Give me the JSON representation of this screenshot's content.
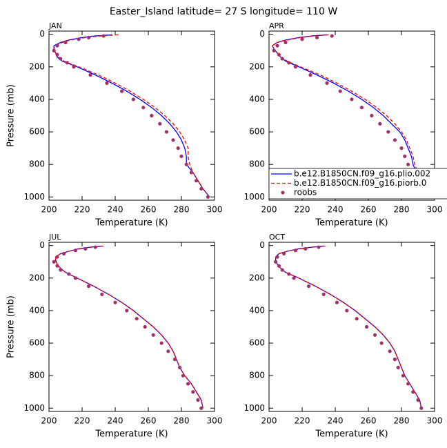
{
  "title": "Easter_Island  latitude= 27 S longitude= 110 W",
  "chart_data": [
    {
      "type": "line",
      "title": "JAN",
      "xlabel": "Temperature (K)",
      "ylabel": "Pressure (mb)",
      "xlim": [
        200,
        300
      ],
      "xticks": [
        200,
        220,
        240,
        260,
        280,
        300
      ],
      "ylim": [
        -20,
        1020
      ],
      "yticks": [
        0,
        200,
        400,
        600,
        800,
        1000
      ],
      "y_inverted": true,
      "series": [
        {
          "color": "#0000ff",
          "style": "solid",
          "x": [
            238,
            228,
            220,
            212,
            207,
            203,
            203,
            204,
            205,
            208,
            217,
            228,
            238,
            247,
            255,
            262,
            268,
            273,
            277,
            280,
            282,
            283,
            283,
            287,
            290,
            293,
            297
          ],
          "values": [
            3,
            10,
            20,
            35,
            50,
            70,
            90,
            115,
            140,
            165,
            200,
            250,
            300,
            350,
            400,
            450,
            500,
            550,
            600,
            650,
            700,
            750,
            800,
            850,
            900,
            950,
            1000
          ]
        },
        {
          "color": "#ff0000",
          "style": "dashed",
          "x": [
            242,
            231,
            222,
            213,
            208,
            204,
            203,
            204,
            206,
            209,
            218,
            230,
            240,
            249,
            257,
            264,
            270,
            275,
            279,
            282,
            284,
            284,
            285,
            287,
            290,
            293,
            297
          ],
          "values": [
            3,
            10,
            20,
            35,
            50,
            70,
            90,
            115,
            140,
            165,
            200,
            250,
            300,
            350,
            400,
            450,
            500,
            550,
            600,
            650,
            700,
            750,
            800,
            850,
            900,
            950,
            1000
          ]
        },
        {
          "color": "#a3306a",
          "style": "markers",
          "x": [
            233,
            224,
            218,
            210,
            205,
            203,
            205,
            207,
            211,
            215,
            225,
            235,
            244,
            251,
            257,
            262,
            267,
            271,
            275,
            278,
            280,
            283,
            286,
            289,
            292,
            296
          ],
          "values": [
            10,
            20,
            30,
            50,
            70,
            100,
            125,
            150,
            175,
            200,
            250,
            300,
            350,
            400,
            450,
            500,
            550,
            600,
            650,
            700,
            750,
            800,
            850,
            900,
            950,
            1000
          ]
        }
      ]
    },
    {
      "type": "line",
      "title": "APR",
      "xlabel": "Temperature (K)",
      "xlim": [
        200,
        300
      ],
      "xticks": [
        200,
        220,
        240,
        260,
        280,
        300
      ],
      "ylim": [
        -20,
        1020
      ],
      "yticks": [
        0,
        200,
        400,
        600,
        800,
        1000
      ],
      "y_inverted": true,
      "legend": "lower right",
      "series": [
        {
          "name": "b.e12.B1850CN.f09_g16.plio.002",
          "color": "#0000ff",
          "style": "solid",
          "x": [
            235,
            226,
            218,
            210,
            205,
            202,
            203,
            205,
            207,
            210,
            218,
            229,
            239,
            248,
            256,
            263,
            269,
            274,
            279,
            282,
            284,
            286,
            287,
            289,
            292,
            294,
            296
          ],
          "values": [
            3,
            10,
            20,
            35,
            50,
            70,
            90,
            115,
            140,
            165,
            200,
            250,
            300,
            350,
            400,
            450,
            500,
            550,
            600,
            650,
            700,
            750,
            800,
            850,
            900,
            950,
            1000
          ]
        },
        {
          "name": "b.e12.B1850CN.f09_g16.piorb.0",
          "color": "#ff0000",
          "style": "dashed",
          "x": [
            236,
            227,
            219,
            211,
            205,
            202,
            203,
            205,
            207,
            211,
            219,
            231,
            241,
            250,
            258,
            265,
            271,
            276,
            280,
            283,
            285,
            287,
            288,
            290,
            292,
            294,
            296
          ],
          "values": [
            3,
            10,
            20,
            35,
            50,
            70,
            90,
            115,
            140,
            165,
            200,
            250,
            300,
            350,
            400,
            450,
            500,
            550,
            600,
            650,
            700,
            750,
            800,
            850,
            900,
            950,
            1000
          ]
        },
        {
          "name": "roobs",
          "color": "#a3306a",
          "style": "markers",
          "x": [
            238,
            229,
            220,
            210,
            205,
            203,
            206,
            208,
            212,
            216,
            225,
            235,
            243,
            250,
            256,
            262,
            267,
            272,
            276,
            280,
            282,
            284,
            287,
            290,
            292,
            295
          ],
          "values": [
            10,
            20,
            30,
            50,
            70,
            100,
            125,
            150,
            175,
            200,
            250,
            300,
            350,
            400,
            450,
            500,
            550,
            600,
            650,
            700,
            750,
            800,
            850,
            900,
            950,
            1000
          ]
        }
      ]
    },
    {
      "type": "line",
      "title": "JUL",
      "xlabel": "Temperature (K)",
      "ylabel": "Pressure (mb)",
      "xlim": [
        200,
        300
      ],
      "xticks": [
        200,
        220,
        240,
        260,
        280,
        300
      ],
      "ylim": [
        -20,
        1020
      ],
      "yticks": [
        0,
        200,
        400,
        600,
        800,
        1000
      ],
      "y_inverted": true,
      "series": [
        {
          "color": "#0000ff",
          "style": "solid",
          "x": [
            232,
            225,
            218,
            212,
            207,
            204,
            204,
            205,
            207,
            210,
            217,
            227,
            236,
            244,
            251,
            257,
            263,
            268,
            272,
            275,
            277,
            279,
            282,
            286,
            289,
            292,
            293
          ],
          "values": [
            3,
            10,
            20,
            35,
            50,
            70,
            90,
            115,
            140,
            165,
            200,
            250,
            300,
            350,
            400,
            450,
            500,
            550,
            600,
            650,
            700,
            750,
            800,
            850,
            900,
            950,
            1000
          ]
        },
        {
          "color": "#ff0000",
          "style": "dashed",
          "x": [
            233,
            226,
            219,
            212,
            207,
            204,
            204,
            205,
            207,
            210,
            217,
            227,
            236,
            244,
            251,
            257,
            263,
            268,
            272,
            275,
            277,
            279,
            282,
            286,
            289,
            292,
            293
          ],
          "values": [
            3,
            10,
            20,
            35,
            50,
            70,
            90,
            115,
            140,
            165,
            200,
            250,
            300,
            350,
            400,
            450,
            500,
            550,
            600,
            650,
            700,
            750,
            800,
            850,
            900,
            950,
            1000
          ]
        },
        {
          "color": "#a3306a",
          "style": "markers",
          "x": [
            228,
            222,
            216,
            209,
            205,
            203,
            205,
            207,
            212,
            216,
            224,
            232,
            240,
            247,
            253,
            258,
            263,
            268,
            272,
            276,
            279,
            281,
            284,
            287,
            290,
            292
          ],
          "values": [
            10,
            20,
            30,
            50,
            70,
            100,
            125,
            150,
            175,
            200,
            250,
            300,
            350,
            400,
            450,
            500,
            550,
            600,
            650,
            700,
            750,
            800,
            850,
            900,
            950,
            1000
          ]
        }
      ]
    },
    {
      "type": "line",
      "title": "OCT",
      "xlabel": "Temperature (K)",
      "xlim": [
        200,
        300
      ],
      "xticks": [
        200,
        220,
        240,
        260,
        280,
        300
      ],
      "ylim": [
        -20,
        1020
      ],
      "yticks": [
        0,
        200,
        400,
        600,
        800,
        1000
      ],
      "y_inverted": true,
      "series": [
        {
          "color": "#0000ff",
          "style": "solid",
          "x": [
            233,
            226,
            218,
            211,
            206,
            204,
            204,
            205,
            207,
            210,
            218,
            228,
            237,
            245,
            252,
            258,
            264,
            269,
            273,
            276,
            278,
            280,
            282,
            285,
            288,
            291,
            292
          ],
          "values": [
            3,
            10,
            20,
            35,
            50,
            70,
            90,
            115,
            140,
            165,
            200,
            250,
            300,
            350,
            400,
            450,
            500,
            550,
            600,
            650,
            700,
            750,
            800,
            850,
            900,
            950,
            1000
          ]
        },
        {
          "color": "#ff0000",
          "style": "dashed",
          "x": [
            234,
            226,
            219,
            211,
            206,
            204,
            204,
            205,
            207,
            210,
            218,
            228,
            237,
            245,
            252,
            258,
            264,
            269,
            273,
            276,
            278,
            280,
            282,
            285,
            288,
            291,
            292
          ],
          "values": [
            3,
            10,
            20,
            35,
            50,
            70,
            90,
            115,
            140,
            165,
            200,
            250,
            300,
            350,
            400,
            450,
            500,
            550,
            600,
            650,
            700,
            750,
            800,
            850,
            900,
            950,
            1000
          ]
        },
        {
          "color": "#a3306a",
          "style": "markers",
          "x": [
            230,
            222,
            216,
            209,
            205,
            204,
            206,
            208,
            212,
            215,
            224,
            233,
            241,
            247,
            253,
            259,
            264,
            268,
            273,
            276,
            278,
            281,
            284,
            287,
            290,
            292
          ],
          "values": [
            10,
            20,
            30,
            50,
            70,
            100,
            125,
            150,
            175,
            200,
            250,
            300,
            350,
            400,
            450,
            500,
            550,
            600,
            650,
            700,
            750,
            800,
            850,
            900,
            950,
            1000
          ]
        }
      ]
    }
  ]
}
